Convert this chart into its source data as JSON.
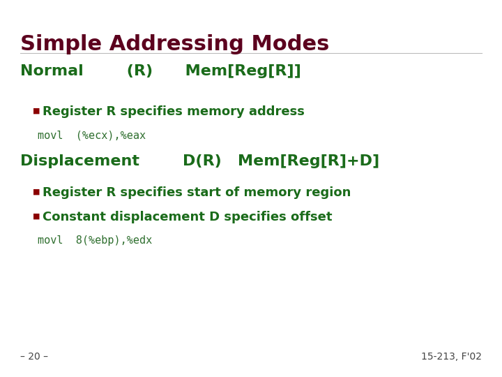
{
  "title": "Simple Addressing Modes",
  "title_color": "#5c001e",
  "title_fontsize": 22,
  "bg_color": "#ffffff",
  "green_color": "#1a6b1a",
  "bullet_color": "#8b0000",
  "code_color": "#2f6f2f",
  "normal_heading": "Normal        (R)      Mem[Reg[R]]",
  "normal_bullet": "Register R specifies memory address",
  "normal_code": "movl  (%ecx),%eax",
  "disp_heading": "Displacement        D(R)   Mem[Reg[R]+D]",
  "disp_bullet1": "Register R specifies start of memory region",
  "disp_bullet2": "Constant displacement D specifies offset",
  "disp_code": "movl  8(%ebp),%edx",
  "footer_left": "– 20 –",
  "footer_right": "15-213, F'02",
  "footer_color": "#444444",
  "footer_fontsize": 10,
  "heading_fontsize": 16,
  "bullet_fontsize": 13,
  "code_fontsize": 11
}
